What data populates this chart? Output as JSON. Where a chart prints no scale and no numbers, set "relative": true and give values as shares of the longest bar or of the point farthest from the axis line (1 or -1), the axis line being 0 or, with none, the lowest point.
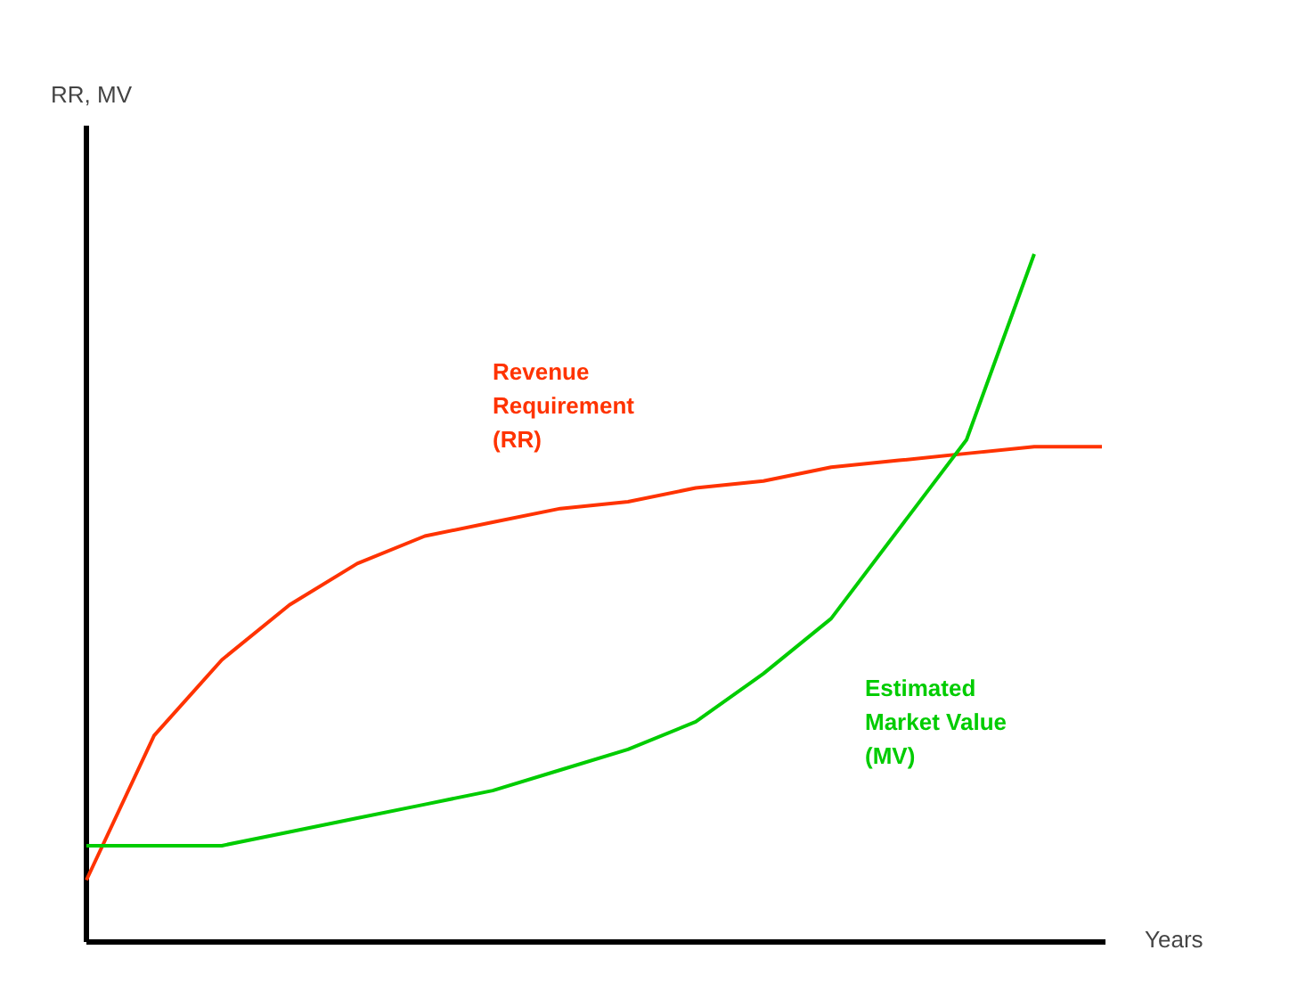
{
  "chart_data": {
    "type": "line",
    "relative": true,
    "xlabel": "Years",
    "annotations": [
      "RR, MV"
    ],
    "grid": false,
    "legend": false,
    "categories": [
      null,
      null,
      null,
      null,
      null,
      null,
      null,
      null,
      null,
      null,
      null,
      null,
      null,
      null,
      null,
      null
    ],
    "series": [
      {
        "name": "Revenue Requirement (RR)",
        "color": "#ff3300",
        "values": [
          0.09,
          0.3,
          0.41,
          0.49,
          0.55,
          0.59,
          0.61,
          0.63,
          0.64,
          0.66,
          0.67,
          0.69,
          0.7,
          0.71,
          0.72,
          0.72
        ]
      },
      {
        "name": "Estimated Market Value (MV)",
        "color": "#00cc00",
        "values": [
          0.14,
          0.14,
          0.14,
          0.16,
          0.18,
          0.2,
          0.22,
          0.25,
          0.28,
          0.32,
          0.39,
          0.47,
          0.6,
          0.73,
          1.0,
          null
        ]
      }
    ]
  }
}
